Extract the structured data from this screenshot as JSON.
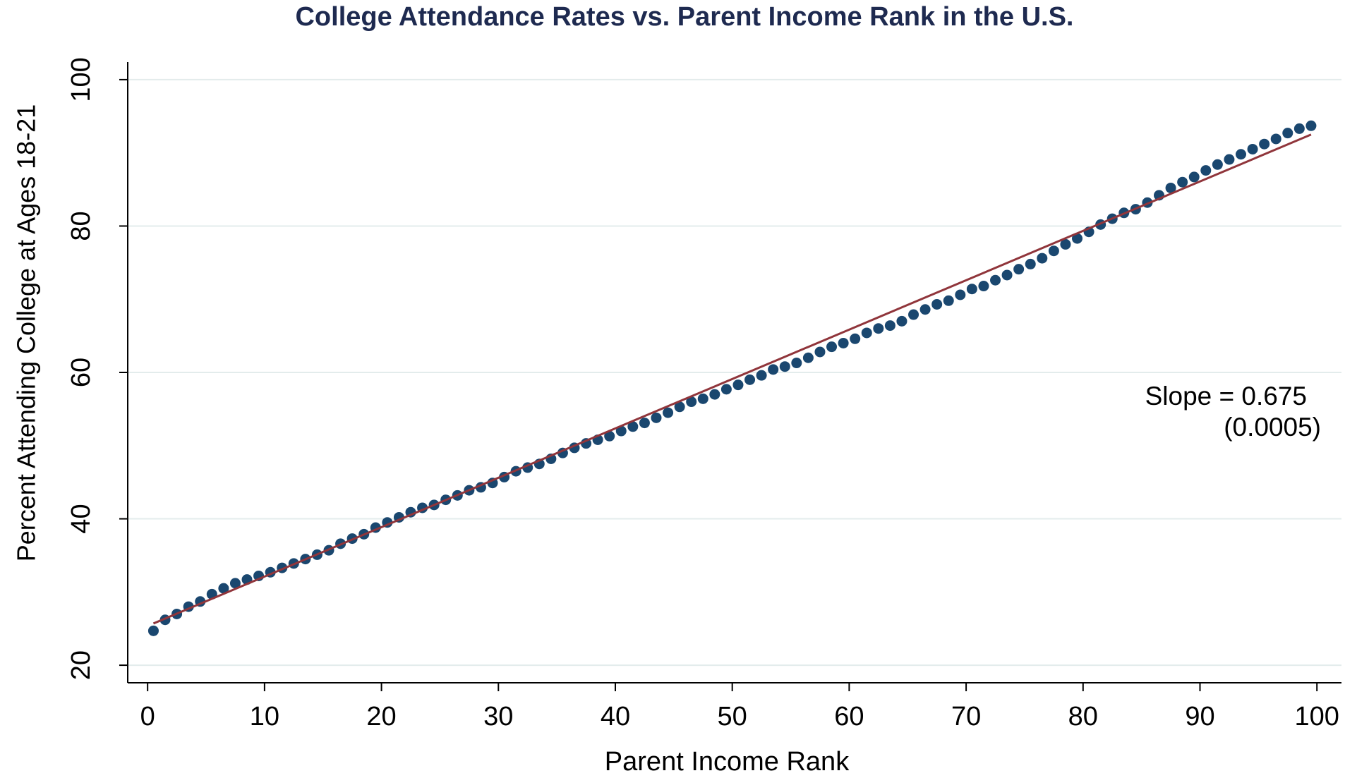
{
  "chart_data": {
    "type": "scatter",
    "title": "College Attendance Rates vs. Parent Income Rank in the U.S.",
    "x_label": "Parent Income Rank",
    "y_label": "Percent Attending College at Ages 18-21",
    "xlim": [
      -1.7,
      102.1
    ],
    "ylim": [
      17.6,
      102.4
    ],
    "xticks": [
      0,
      10,
      20,
      30,
      40,
      50,
      60,
      70,
      80,
      90,
      100
    ],
    "yticks": [
      20,
      40,
      60,
      80,
      100
    ],
    "grid": true,
    "series": [
      {
        "type": "scatter",
        "color": "#1a476f",
        "x": [
          0.5,
          1.5,
          2.5,
          3.5,
          4.5,
          5.5,
          6.5,
          7.5,
          8.5,
          9.5,
          10.5,
          11.5,
          12.5,
          13.5,
          14.5,
          15.5,
          16.5,
          17.5,
          18.5,
          19.5,
          20.5,
          21.5,
          22.5,
          23.5,
          24.5,
          25.5,
          26.5,
          27.5,
          28.5,
          29.5,
          30.5,
          31.5,
          32.5,
          33.5,
          34.5,
          35.5,
          36.5,
          37.5,
          38.5,
          39.5,
          40.5,
          41.5,
          42.5,
          43.5,
          44.5,
          45.5,
          46.5,
          47.5,
          48.5,
          49.5,
          50.5,
          51.5,
          52.5,
          53.5,
          54.5,
          55.5,
          56.5,
          57.5,
          58.5,
          59.5,
          60.5,
          61.5,
          62.5,
          63.5,
          64.5,
          65.5,
          66.5,
          67.5,
          68.5,
          69.5,
          70.5,
          71.5,
          72.5,
          73.5,
          74.5,
          75.5,
          76.5,
          77.5,
          78.5,
          79.5,
          80.5,
          81.5,
          82.5,
          83.5,
          84.5,
          85.5,
          86.5,
          87.5,
          88.5,
          89.5,
          90.5,
          91.5,
          92.5,
          93.5,
          94.5,
          95.5,
          96.5,
          97.5,
          98.5,
          99.5
        ],
        "values": [
          24.7,
          26.2,
          27.0,
          28.0,
          28.7,
          29.7,
          30.5,
          31.2,
          31.7,
          32.2,
          32.7,
          33.3,
          33.9,
          34.5,
          35.1,
          35.7,
          36.6,
          37.3,
          37.9,
          38.8,
          39.5,
          40.2,
          40.9,
          41.5,
          41.9,
          42.6,
          43.2,
          43.9,
          44.3,
          44.9,
          45.7,
          46.5,
          47.0,
          47.5,
          48.2,
          49.0,
          49.7,
          50.3,
          50.8,
          51.3,
          52.0,
          52.6,
          53.1,
          53.8,
          54.5,
          55.3,
          56.0,
          56.4,
          57.0,
          57.7,
          58.3,
          59.0,
          59.6,
          60.4,
          60.8,
          61.3,
          62.0,
          62.8,
          63.5,
          64.0,
          64.6,
          65.4,
          66.0,
          66.4,
          67.0,
          67.9,
          68.6,
          69.3,
          69.8,
          70.6,
          71.4,
          71.8,
          72.6,
          73.3,
          74.1,
          74.8,
          75.6,
          76.6,
          77.5,
          78.3,
          79.2,
          80.2,
          81.0,
          81.8,
          82.3,
          83.2,
          84.2,
          85.2,
          86.0,
          86.7,
          87.6,
          88.4,
          89.1,
          89.8,
          90.5,
          91.2,
          91.9,
          92.7,
          93.3,
          93.7
        ]
      },
      {
        "type": "line",
        "color": "#90353b",
        "x": [
          0.5,
          99.5
        ],
        "values": [
          25.7,
          92.5
        ]
      }
    ],
    "annotations": [
      "Slope = 0.675",
      "(0.0005)"
    ]
  }
}
